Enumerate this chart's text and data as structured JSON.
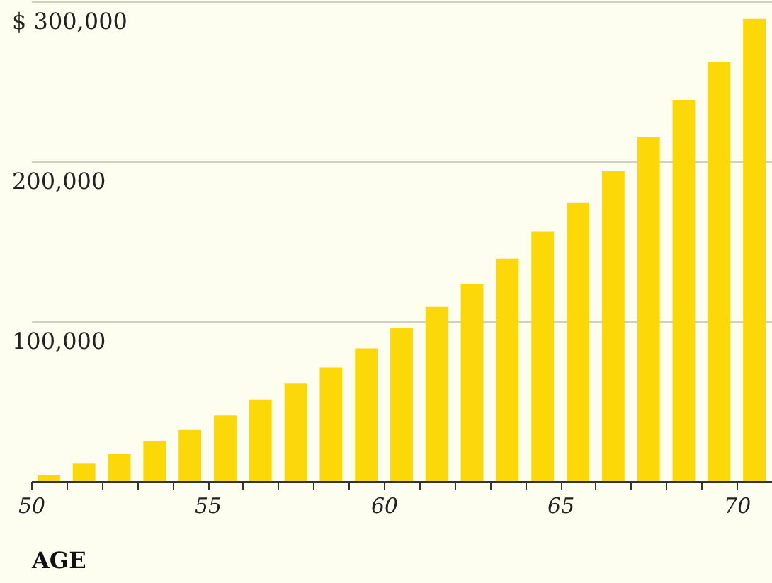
{
  "chart_data": {
    "type": "histogram",
    "xlabel": "AGE",
    "bins": [
      50,
      51,
      52,
      53,
      54,
      55,
      56,
      57,
      58,
      59,
      60,
      61,
      62,
      63,
      64,
      65,
      66,
      67,
      68,
      69,
      70,
      71
    ],
    "values": [
      4000,
      11000,
      17000,
      25000,
      32000,
      41000,
      51000,
      61000,
      71000,
      83000,
      96000,
      109000,
      123000,
      139000,
      156000,
      174000,
      194000,
      215000,
      238000,
      262000,
      289000
    ],
    "color": "#fdd808",
    "xlim": [
      50,
      71
    ],
    "xticks": [
      50,
      {
        "value": 51,
        "label": null
      },
      {
        "value": 52,
        "label": null
      },
      {
        "value": 53,
        "label": null
      },
      {
        "value": 54,
        "label": null
      },
      55,
      {
        "value": 56,
        "label": null
      },
      {
        "value": 57,
        "label": null
      },
      {
        "value": 58,
        "label": null
      },
      {
        "value": 59,
        "label": null
      },
      60,
      {
        "value": 61,
        "label": null
      },
      {
        "value": 62,
        "label": null
      },
      {
        "value": 63,
        "label": null
      },
      {
        "value": 64,
        "label": null
      },
      65,
      {
        "value": 66,
        "label": null
      },
      {
        "value": 67,
        "label": null
      },
      {
        "value": 68,
        "label": null
      },
      {
        "value": 69,
        "label": null
      },
      70
    ],
    "ylim": [
      0,
      300000
    ],
    "yticks": [
      {
        "value": 100000,
        "label": "100,000"
      },
      {
        "value": 200000,
        "label": "200,000"
      },
      {
        "value": 300000,
        "label": "$ 300,000"
      }
    ],
    "grid": "y"
  }
}
